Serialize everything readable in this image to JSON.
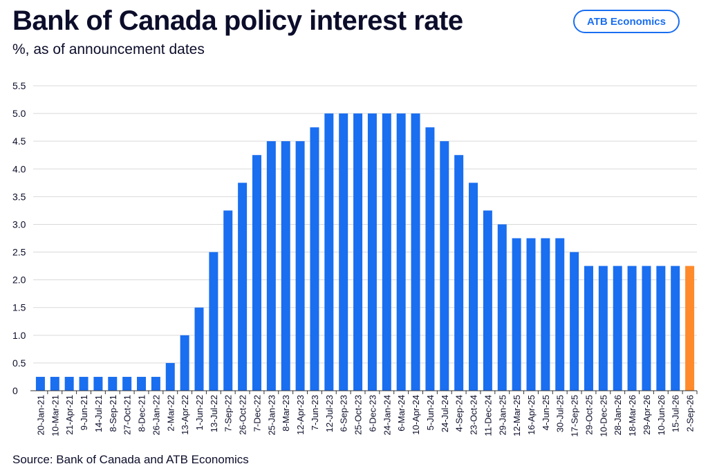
{
  "header": {
    "title": "Bank of Canada policy interest rate",
    "subtitle": "%, as of announcement dates",
    "brand": "ATB Economics"
  },
  "footer": {
    "source": "Source: Bank of Canada and ATB Economics"
  },
  "colors": {
    "bar": "#1a6ef0",
    "highlight": "#ff8a2b",
    "grid": "#d9d9d9",
    "axis": "#333333"
  },
  "chart_data": {
    "type": "bar",
    "title": "Bank of Canada policy interest rate",
    "subtitle": "%, as of announcement dates",
    "xlabel": "",
    "ylabel": "",
    "ylim": [
      0,
      5.5
    ],
    "yticks": [
      0,
      0.5,
      1.0,
      1.5,
      2.0,
      2.5,
      3.0,
      3.5,
      4.0,
      4.5,
      5.0,
      5.5
    ],
    "ytick_labels": [
      "0",
      "0.5",
      "1.0",
      "1.5",
      "2.0",
      "2.5",
      "3.0",
      "3.5",
      "4.0",
      "4.5",
      "5.0",
      "5.5"
    ],
    "grid": true,
    "legend": "none",
    "categories": [
      "20-Jan-21",
      "10-Mar-21",
      "21-Apr-21",
      "9-Jun-21",
      "14-Jul-21",
      "8-Sep-21",
      "27-Oct-21",
      "8-Dec-21",
      "26-Jan-22",
      "2-Mar-22",
      "13-Apr-22",
      "1-Jun-22",
      "13-Jul-22",
      "7-Sep-22",
      "26-Oct-22",
      "7-Dec-22",
      "25-Jan-23",
      "8-Mar-23",
      "12-Apr-23",
      "7-Jun-23",
      "12-Jul-23",
      "6-Sep-23",
      "25-Oct-23",
      "6-Dec-23",
      "24-Jan-24",
      "6-Mar-24",
      "10-Apr-24",
      "5-Jun-24",
      "24-Jul-24",
      "4-Sep-24",
      "23-Oct-24",
      "11-Dec-24",
      "29-Jan-25",
      "12-Mar-25",
      "16-Apr-25",
      "4-Jun-25",
      "30-Jul-25",
      "17-Sep-25",
      "29-Oct-25",
      "10-Dec-25",
      "28-Jan-26",
      "18-Mar-26",
      "29-Apr-26",
      "10-Jun-26",
      "15-Jul-26",
      "2-Sep-26"
    ],
    "values": [
      0.25,
      0.25,
      0.25,
      0.25,
      0.25,
      0.25,
      0.25,
      0.25,
      0.25,
      0.5,
      1.0,
      1.5,
      2.5,
      3.25,
      3.75,
      4.25,
      4.5,
      4.5,
      4.5,
      4.75,
      5.0,
      5.0,
      5.0,
      5.0,
      5.0,
      5.0,
      5.0,
      4.75,
      4.5,
      4.25,
      3.75,
      3.25,
      3.0,
      2.75,
      2.75,
      2.75,
      2.75,
      2.5,
      2.25,
      2.25,
      2.25,
      2.25,
      2.25,
      2.25,
      2.25,
      2.25
    ],
    "highlight_index": 45
  }
}
